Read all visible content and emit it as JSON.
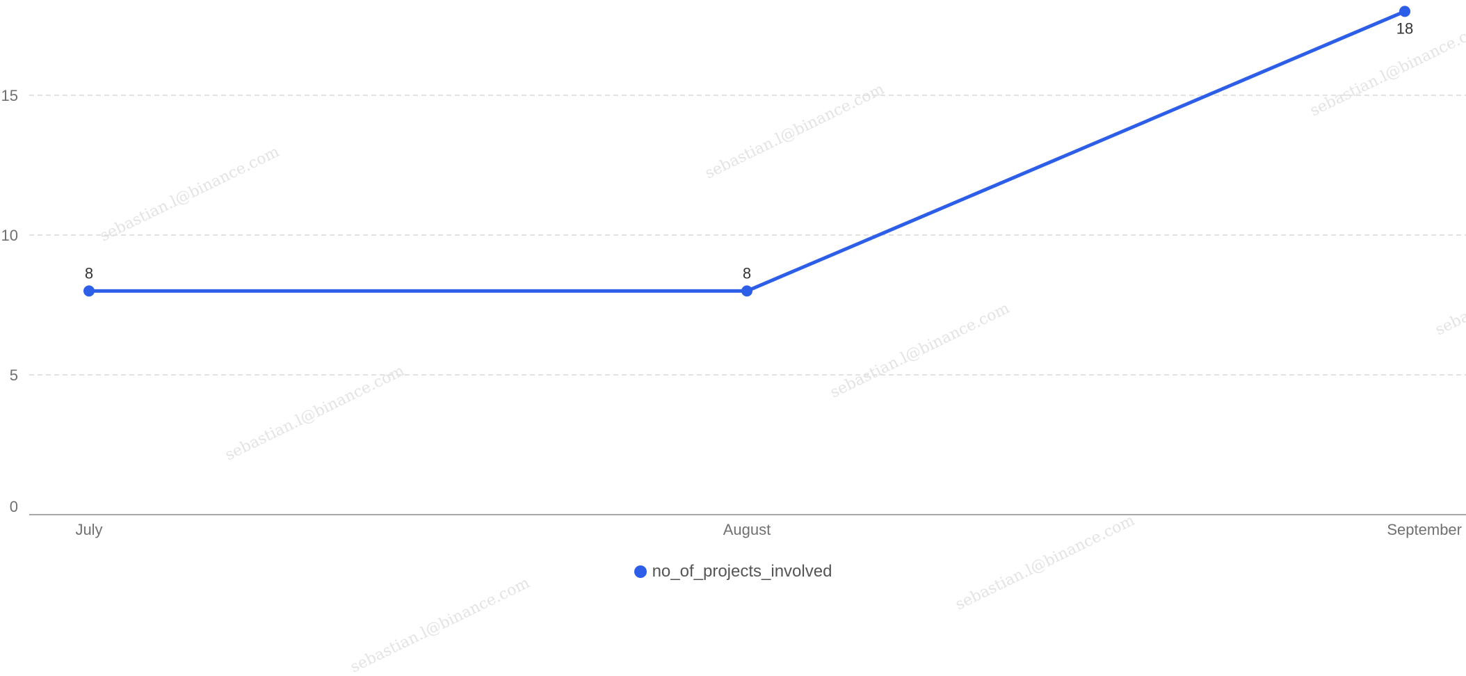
{
  "chart_data": {
    "type": "line",
    "categories": [
      "July",
      "August",
      "September"
    ],
    "series": [
      {
        "name": "no_of_projects_involved",
        "values": [
          8,
          8,
          18
        ],
        "color": "#2c5ee8"
      }
    ],
    "data_labels": [
      "8",
      "8",
      "18"
    ],
    "y_ticks": [
      0,
      5,
      10,
      15
    ],
    "ylim": [
      0,
      18
    ],
    "grid": true,
    "legend_position": "bottom"
  },
  "watermark_text": "sebastian.l@binance.com"
}
